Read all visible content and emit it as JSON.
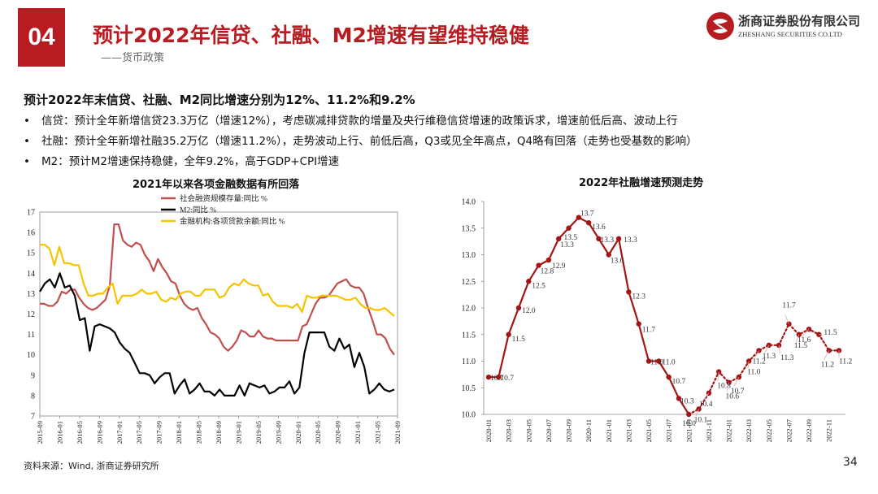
{
  "header": {
    "section_number": "04",
    "title": "预计2022年信贷、社融、M2增速有望维持稳健",
    "subtitle": "——货币政策",
    "logo_cn": "浙商证券股份有限公司",
    "logo_en": "ZHESHANG SECURITIES CO.LTD"
  },
  "content": {
    "headline": "预计2022年末信贷、社融、M2同比增速分别为12%、11.2%和9.2%",
    "bullets": [
      "信贷：预计全年新增信贷23.3万亿（增速12%），考虑碳减排贷款的增量及央行维稳信贷增速的政策诉求，增速前低后高、波动上行",
      "社融：预计全年新增社融35.2万亿（增速11.2%），走势波动上行、前低后高，Q3或见全年高点，Q4略有回落（走势也受基数的影响）",
      "M2：预计M2增速保持稳健，全年9.2%，高于GDP+CPI增速"
    ],
    "bullet_mark": "•"
  },
  "footer": {
    "source": "资料来源：Wind, 浙商证券研究所",
    "page": "34"
  },
  "colors": {
    "brand": "#b61c22",
    "tsf": "#c0504d",
    "m2": "#000000",
    "loan": "#f5c400",
    "forecast": "#a31515"
  },
  "chart_data": [
    {
      "type": "line",
      "title": "2021年以来各项金融数据有所回落",
      "ylim": [
        7,
        17
      ],
      "yticks": [
        "7",
        "8",
        "9",
        "10",
        "11",
        "12",
        "13",
        "14",
        "15",
        "16",
        "17"
      ],
      "x_start": "2015-09",
      "xticks": [
        "2015-09",
        "2016-01",
        "2016-05",
        "2016-09",
        "2017-01",
        "2017-05",
        "2017-09",
        "2018-01",
        "2018-05",
        "2018-09",
        "2019-01",
        "2019-05",
        "2019-09",
        "2020-01",
        "2020-05",
        "2020-09",
        "2021-01",
        "2021-05",
        "2021-09"
      ],
      "series": [
        {
          "name": "社会融资规模存量:同比 %",
          "color": "#c0504d",
          "values": [
            12.5,
            12.5,
            12.4,
            12.4,
            12.6,
            13.1,
            13.0,
            13.2,
            13.2,
            12.8,
            12.5,
            12.3,
            12.2,
            12.3,
            12.5,
            12.7,
            13.4,
            16.4,
            16.4,
            15.6,
            15.4,
            15.3,
            15.5,
            15.4,
            14.9,
            14.6,
            14.1,
            14.7,
            14.3,
            14.0,
            13.6,
            13.5,
            12.9,
            12.5,
            12.3,
            12.2,
            12.3,
            11.8,
            11.5,
            11.1,
            11.0,
            10.8,
            10.4,
            10.2,
            10.4,
            10.7,
            11.2,
            11.1,
            10.9,
            10.9,
            11.2,
            10.9,
            10.8,
            10.8,
            10.7,
            10.7,
            10.7,
            10.7,
            10.7,
            10.7,
            11.4,
            11.5,
            12.0,
            12.5,
            12.8,
            12.8,
            12.9,
            13.2,
            13.5,
            13.6,
            13.7,
            13.4,
            13.3,
            13.3,
            13.0,
            12.3,
            11.7,
            11.0,
            11.0,
            10.8,
            10.3,
            10.0
          ]
        },
        {
          "name": "M2:同比 %",
          "color": "#000000",
          "values": [
            13.1,
            13.5,
            13.7,
            13.3,
            14.0,
            13.3,
            13.4,
            12.9,
            11.7,
            11.8,
            10.2,
            11.4,
            11.5,
            11.4,
            11.3,
            11.1,
            10.6,
            10.3,
            10.1,
            9.6,
            9.1,
            9.1,
            9.0,
            8.6,
            8.9,
            9.1,
            9.1,
            8.1,
            8.5,
            8.8,
            8.1,
            8.3,
            8.6,
            8.2,
            8.2,
            8.0,
            8.3,
            8.0,
            8.0,
            8.0,
            8.5,
            8.0,
            8.6,
            8.5,
            8.4,
            8.5,
            8.1,
            8.2,
            8.4,
            8.4,
            8.7,
            8.1,
            8.4,
            10.1,
            11.1,
            11.1,
            11.1,
            11.1,
            10.4,
            10.2,
            10.8,
            10.3,
            10.5,
            9.4,
            10.1,
            9.4,
            8.1,
            8.3,
            8.6,
            8.3,
            8.2,
            8.3
          ]
        },
        {
          "name": "金融机构:各项贷款余额:同比 %",
          "color": "#f5c400",
          "values": [
            15.4,
            15.4,
            15.2,
            14.4,
            15.3,
            14.5,
            14.5,
            14.4,
            14.4,
            13.5,
            12.9,
            12.9,
            13.0,
            13.0,
            13.3,
            13.5,
            12.5,
            12.9,
            12.9,
            12.9,
            13.0,
            13.2,
            13.0,
            13.0,
            13.1,
            12.7,
            12.6,
            12.8,
            12.7,
            13.0,
            13.1,
            13.1,
            12.9,
            12.9,
            13.2,
            13.2,
            13.2,
            12.8,
            12.9,
            13.3,
            13.5,
            13.4,
            13.7,
            13.5,
            13.4,
            13.4,
            12.9,
            13.0,
            12.6,
            12.4,
            12.4,
            12.4,
            12.3,
            12.5,
            12.1,
            12.9,
            12.8,
            12.8,
            12.9,
            12.9,
            12.9,
            12.9,
            12.8,
            12.7,
            12.7,
            12.8,
            12.5,
            12.3,
            12.3,
            12.2,
            12.2,
            12.3,
            12.1,
            11.9
          ]
        }
      ]
    },
    {
      "type": "line",
      "title": "2022年社融增速预测走势",
      "ylim": [
        10.0,
        14.0
      ],
      "yticks": [
        "10.0",
        "10.5",
        "11.0",
        "11.5",
        "12.0",
        "12.5",
        "13.0",
        "13.5",
        "14.0"
      ],
      "xticks": [
        "2020-01",
        "2020-03",
        "2020-05",
        "2020-07",
        "2020-09",
        "2020-11",
        "2021-01",
        "2021-03",
        "2021-05",
        "2021-07",
        "2021-09",
        "2021-11",
        "2022-01",
        "2022-03",
        "2022-05",
        "2022-07",
        "2022-09",
        "2022-11"
      ],
      "actual_label_x": [
        "2020-01",
        "2020-02",
        "2020-03",
        "2020-04",
        "2020-05",
        "2020-06",
        "2020-07",
        "2020-08",
        "2020-09",
        "2020-10",
        "2020-11",
        "2020-12",
        "2021-01",
        "2021-02",
        "2021-03",
        "2021-04",
        "2021-05",
        "2021-06",
        "2021-07",
        "2021-08",
        "2021-09"
      ],
      "actual": [
        10.7,
        10.7,
        11.5,
        12.0,
        12.5,
        12.8,
        12.9,
        13.3,
        13.5,
        13.7,
        13.6,
        13.3,
        13.0,
        13.3,
        12.3,
        11.7,
        11.0,
        11.0,
        10.7,
        10.3,
        10.0
      ],
      "actual_labels": [
        "10.7",
        "10.7",
        "11.5",
        "12.0",
        "12.5",
        "12.8",
        "12.9",
        "13.3",
        "13.5",
        "13.7",
        "13.6",
        "13.3",
        "13.0",
        "13.3",
        "12.3",
        "11.7",
        "11.0",
        "11.0",
        "10.7",
        "10.3",
        "10.0"
      ],
      "forecast": [
        10.0,
        10.1,
        10.4,
        10.8,
        10.6,
        10.7,
        11.0,
        11.2,
        11.3,
        11.3,
        11.7,
        11.5,
        11.6,
        11.5,
        11.2,
        11.2
      ],
      "forecast_labels": [
        "10.0",
        "10.1",
        "10.4",
        "10.8",
        "10.6",
        "10.7",
        "11.0",
        "11.2",
        "11.3",
        "11.3",
        "11.7",
        "11.5",
        "11.6",
        "11.5",
        "11.2",
        "11.2"
      ]
    }
  ]
}
